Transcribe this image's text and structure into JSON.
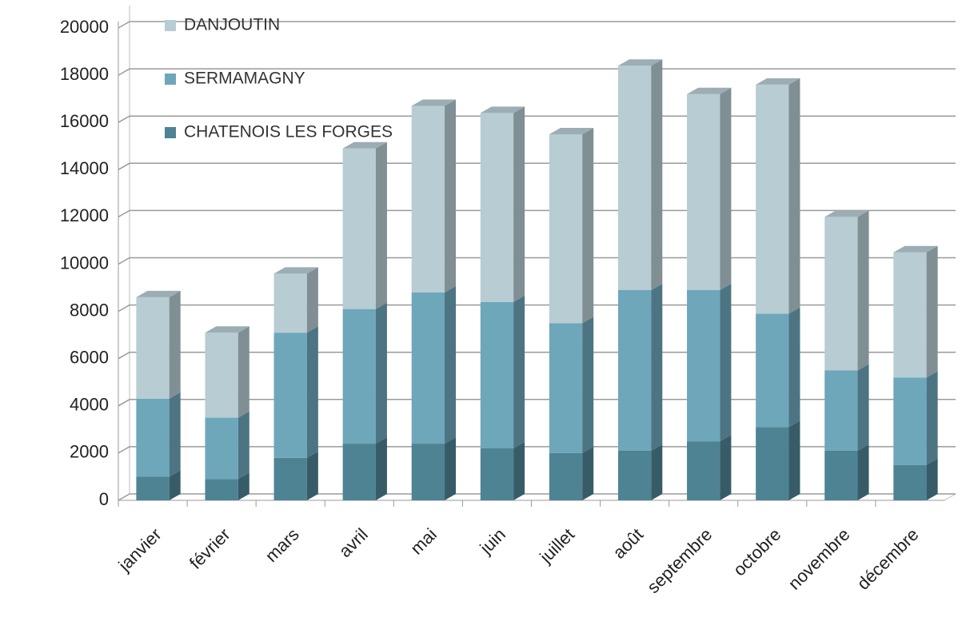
{
  "chart_data": {
    "type": "bar",
    "stacked": true,
    "categories": [
      "janvier",
      "février",
      "mars",
      "avril",
      "mai",
      "juin",
      "juillet",
      "août",
      "septembre",
      "octobre",
      "novembre",
      "décembre"
    ],
    "series": [
      {
        "name": "CHATENOIS LES FORGES",
        "color": "#4e8394",
        "values": [
          1000,
          900,
          1800,
          2400,
          2400,
          2200,
          2000,
          2100,
          2500,
          3100,
          2100,
          1500
        ]
      },
      {
        "name": "SERMAMAGNY",
        "color": "#6ea6ba",
        "values": [
          3300,
          2600,
          5300,
          5700,
          6400,
          6200,
          5500,
          6800,
          6400,
          4800,
          3400,
          3700
        ]
      },
      {
        "name": "DANJOUTIN",
        "color": "#b7ccd3",
        "values": [
          4300,
          3600,
          2500,
          6800,
          7900,
          8000,
          8000,
          9500,
          8300,
          9700,
          6500,
          5300
        ]
      }
    ],
    "ylim": [
      0,
      20000
    ],
    "yticks": [
      0,
      2000,
      4000,
      6000,
      8000,
      10000,
      12000,
      14000,
      16000,
      18000,
      20000
    ],
    "grid": true,
    "legend": "top-left"
  }
}
